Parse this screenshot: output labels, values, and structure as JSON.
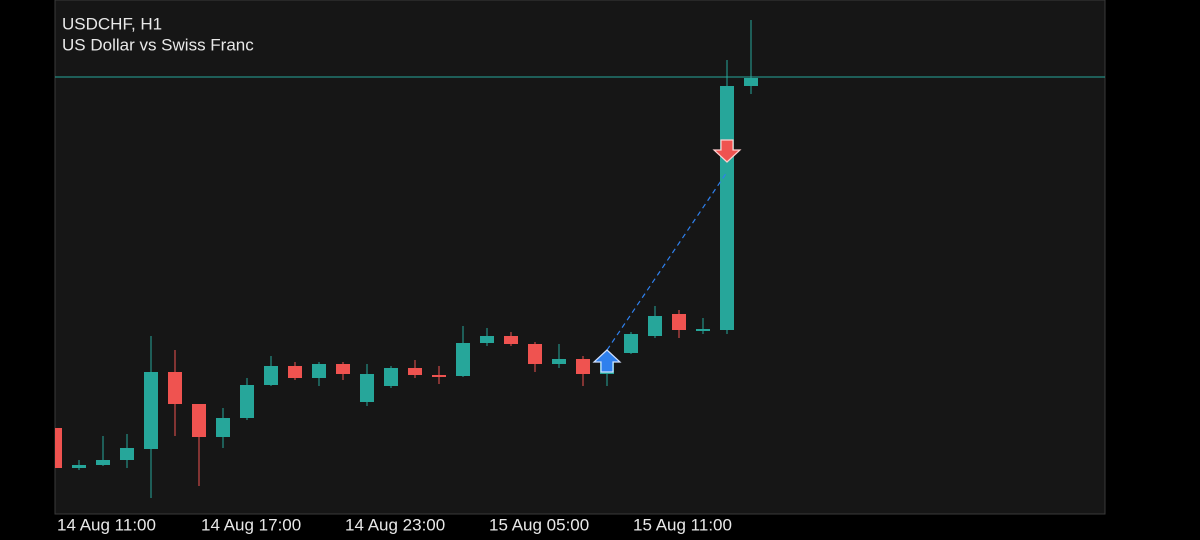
{
  "chart_data": {
    "type": "candlestick",
    "title": "USDCHF, H1",
    "subtitle": "US Dollar vs Swiss Franc",
    "categories": [
      "14 Aug 11:00",
      null,
      null,
      null,
      null,
      null,
      "14 Aug 17:00",
      null,
      null,
      null,
      null,
      null,
      "14 Aug 23:00",
      null,
      null,
      null,
      null,
      null,
      "15 Aug 05:00",
      null,
      null,
      null,
      null,
      null,
      "15 Aug 11:00",
      null,
      null,
      null,
      null,
      null
    ],
    "open": [
      86,
      46,
      49,
      54,
      65,
      142,
      110,
      77,
      96,
      129,
      148,
      136,
      150,
      112,
      128,
      146,
      139,
      138,
      171,
      178,
      170,
      150,
      155,
      140,
      161,
      178,
      200,
      183,
      184,
      428
    ],
    "high": [
      86,
      54,
      78,
      80,
      178,
      164,
      110,
      106,
      136,
      158,
      152,
      152,
      152,
      150,
      148,
      154,
      148,
      188,
      186,
      182,
      172,
      170,
      158,
      154,
      182,
      208,
      204,
      196,
      454,
      494
    ],
    "low": [
      46,
      44,
      48,
      46,
      16,
      78,
      28,
      66,
      94,
      128,
      134,
      128,
      134,
      108,
      126,
      136,
      130,
      137,
      168,
      168,
      142,
      146,
      128,
      128,
      160,
      176,
      176,
      180,
      180,
      420
    ],
    "close": [
      46,
      49,
      54,
      66,
      142,
      110,
      77,
      96,
      129,
      148,
      136,
      150,
      140,
      140,
      146,
      139,
      137,
      171,
      178,
      170,
      150,
      155,
      140,
      152,
      180,
      198,
      184,
      185,
      428,
      436
    ],
    "up_color": "#26a69a",
    "down_color": "#ef5350",
    "ylim": [
      0,
      514
    ],
    "price_line": 437,
    "buy_marker": {
      "index": 23,
      "value": 164,
      "color": "#2f80ed"
    },
    "sell_marker": {
      "index": 28,
      "value": 352,
      "color": "#ef5350"
    }
  }
}
